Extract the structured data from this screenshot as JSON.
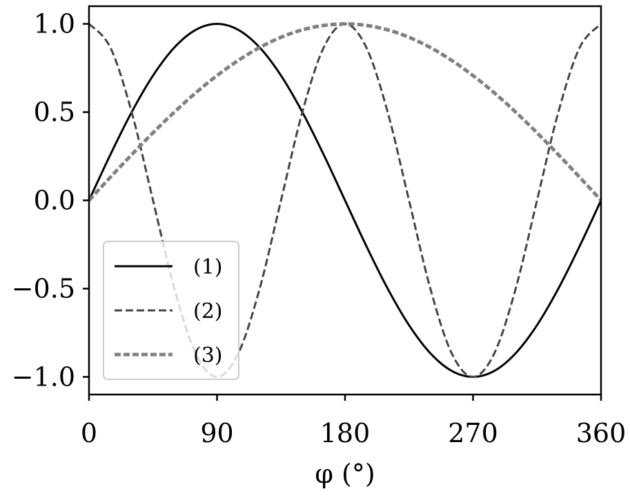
{
  "chart_data": {
    "type": "line",
    "title": "",
    "xlabel": "φ (°)",
    "ylabel": "",
    "xlim": [
      0,
      360
    ],
    "ylim": [
      -1.1,
      1.1
    ],
    "xticks": [
      0,
      90,
      180,
      270,
      360
    ],
    "xtick_labels": [
      "0",
      "90",
      "180",
      "270",
      "360"
    ],
    "yticks": [
      -1.0,
      -0.5,
      0.0,
      0.5,
      1.0
    ],
    "ytick_labels": [
      "−1.0",
      "−0.5",
      "0.0",
      "0.5",
      "1.0"
    ],
    "grid": false,
    "legend_position": "lower-left",
    "x": [
      0,
      15,
      30,
      45,
      60,
      75,
      90,
      105,
      120,
      135,
      150,
      165,
      180,
      195,
      210,
      225,
      240,
      255,
      270,
      285,
      300,
      315,
      330,
      345,
      360
    ],
    "series": [
      {
        "name": "(1)",
        "style": "solid",
        "color": "#000000",
        "values": [
          0.0,
          0.259,
          0.5,
          0.707,
          0.866,
          0.966,
          1.0,
          0.966,
          0.866,
          0.707,
          0.5,
          0.259,
          0.0,
          -0.259,
          -0.5,
          -0.707,
          -0.866,
          -0.966,
          -1.0,
          -0.966,
          -0.866,
          -0.707,
          -0.5,
          -0.259,
          0.0
        ]
      },
      {
        "name": "(2)",
        "style": "dashed",
        "color": "#444444",
        "values": [
          1.0,
          0.866,
          0.5,
          0.0,
          -0.5,
          -0.866,
          -1.0,
          -0.866,
          -0.5,
          0.0,
          0.5,
          0.866,
          1.0,
          0.866,
          0.5,
          0.0,
          -0.5,
          -0.866,
          -1.0,
          -0.866,
          -0.5,
          0.0,
          0.5,
          0.866,
          1.0
        ]
      },
      {
        "name": "(3)",
        "style": "dotted-thick",
        "color": "#808080",
        "values": [
          0.0,
          0.131,
          0.259,
          0.383,
          0.5,
          0.609,
          0.707,
          0.793,
          0.866,
          0.924,
          0.966,
          0.991,
          1.0,
          0.991,
          0.966,
          0.924,
          0.866,
          0.793,
          0.707,
          0.609,
          0.5,
          0.383,
          0.259,
          0.131,
          0.0
        ]
      }
    ]
  }
}
